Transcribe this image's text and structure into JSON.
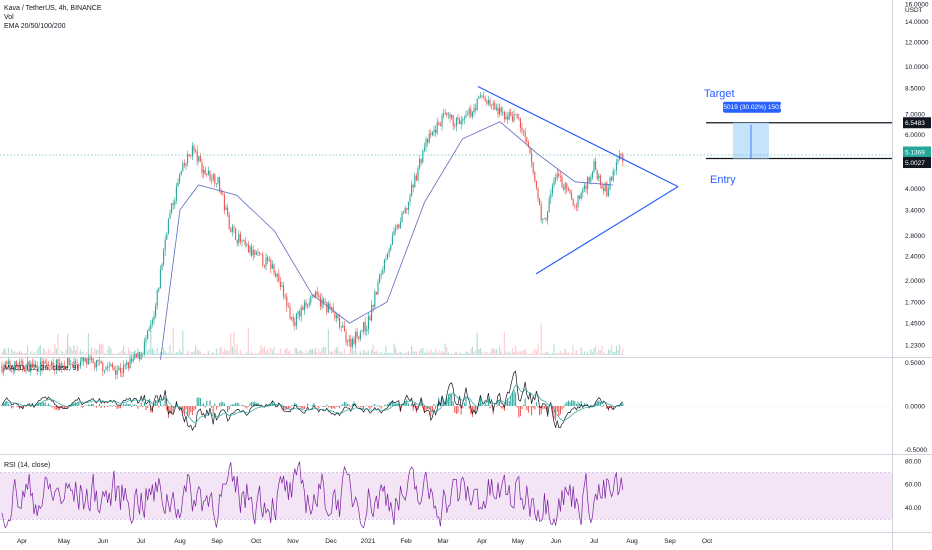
{
  "chart_data": [
    {
      "type": "candlestick",
      "panel": "price",
      "legend": [
        "Kava / TetherUS, 4h, BINANCE",
        "Vol",
        "EMA 20/50/100/200"
      ],
      "unit_label": "USDT",
      "y_scale": "log",
      "y_ticks": [
        "16.0000",
        "14.0000",
        "12.0000",
        "10.0000",
        "8.5000",
        "7.0000",
        "6.0000",
        "5.0000",
        "4.0000",
        "3.4000",
        "2.8000",
        "2.4000",
        "2.0000",
        "1.7000",
        "1.4500",
        "1.2300"
      ],
      "x_ticks": [
        "Apr",
        "May",
        "Jun",
        "Jul",
        "Aug",
        "Sep",
        "Oct",
        "Nov",
        "Dec",
        "2021",
        "Feb",
        "Mar",
        "Apr",
        "May",
        "Jun",
        "Jul",
        "Aug",
        "Sep",
        "Oct"
      ],
      "price_path": [
        [
          "Apr",
          1.05
        ],
        [
          "May",
          1.08
        ],
        [
          "Jun",
          1.02
        ],
        [
          "Jul",
          1.15
        ],
        [
          "Jul",
          1.5
        ],
        [
          "Jul",
          3.0
        ],
        [
          "Aug",
          4.4
        ],
        [
          "Aug",
          5.4
        ],
        [
          "Aug",
          4.5
        ],
        [
          "Sep",
          4.3
        ],
        [
          "Sep",
          3.0
        ],
        [
          "Sep",
          2.6
        ],
        [
          "Oct",
          2.4
        ],
        [
          "Oct",
          2.2
        ],
        [
          "Nov",
          1.45
        ],
        [
          "Nov",
          1.8
        ],
        [
          "Dec",
          1.6
        ],
        [
          "Dec",
          1.25
        ],
        [
          "2021",
          1.45
        ],
        [
          "2021",
          2.5
        ],
        [
          "Feb",
          3.4
        ],
        [
          "Feb",
          5.5
        ],
        [
          "Mar",
          6.8
        ],
        [
          "Mar",
          6.5
        ],
        [
          "Apr",
          8.0
        ],
        [
          "Apr",
          7.0
        ],
        [
          "May",
          6.8
        ],
        [
          "May",
          5.0
        ],
        [
          "May",
          3.0
        ],
        [
          "Jun",
          4.5
        ],
        [
          "Jun",
          3.5
        ],
        [
          "Jul",
          4.7
        ],
        [
          "Jul",
          3.9
        ],
        [
          "Jul",
          5.1
        ]
      ],
      "ema_path": [
        [
          "Jul",
          1.1
        ],
        [
          "Aug",
          3.4
        ],
        [
          "Aug",
          4.1
        ],
        [
          "Sep",
          3.8
        ],
        [
          "Oct",
          2.9
        ],
        [
          "Nov",
          1.8
        ],
        [
          "Dec",
          1.45
        ],
        [
          "2021",
          1.7
        ],
        [
          "Feb",
          3.6
        ],
        [
          "Mar",
          5.8
        ],
        [
          "Apr",
          6.6
        ],
        [
          "May",
          5.2
        ],
        [
          "Jun",
          4.2
        ],
        [
          "Jul",
          4.1
        ]
      ],
      "annotations": {
        "target_label": "Target",
        "entry_label": "Entry",
        "measure_label": "1.5019 (30.02%) 15019",
        "target_price": 6.5483,
        "entry_price": 5.0027,
        "target_tag": "6.5483",
        "entry_tag": "5.0027",
        "last_price_tag": "5.1369",
        "countdown_tag": "00:07:15",
        "triangle": {
          "upper_start": [
            "Apr",
            8.6
          ],
          "lower_start": [
            "May",
            2.1
          ],
          "apex": [
            "Sep",
            4.05
          ]
        }
      },
      "colors": {
        "up": "#26a69a",
        "down": "#ef5350",
        "ema": "#5c6bc0",
        "triangle": "#2962ff",
        "measure": "#bbdefb",
        "last_price": "#26a69a"
      }
    },
    {
      "type": "line",
      "panel": "macd",
      "legend": "MACD (12, 26, close, 9)",
      "y_ticks": [
        "0.5000",
        "0.0000",
        "-0.5000"
      ],
      "ylim": [
        -0.55,
        0.55
      ],
      "colors": {
        "macd": "#131722",
        "signal": "#26a69a",
        "hist_up": "#26a69a",
        "hist_down": "#ef5350"
      }
    },
    {
      "type": "line",
      "panel": "rsi",
      "legend": "RSI (14, close)",
      "y_ticks": [
        "80.00",
        "60.00",
        "40.00"
      ],
      "ylim": [
        20,
        85
      ],
      "band": [
        30,
        70
      ],
      "colors": {
        "rsi": "#7b1fa2",
        "band": "#f3e5f5"
      }
    }
  ]
}
